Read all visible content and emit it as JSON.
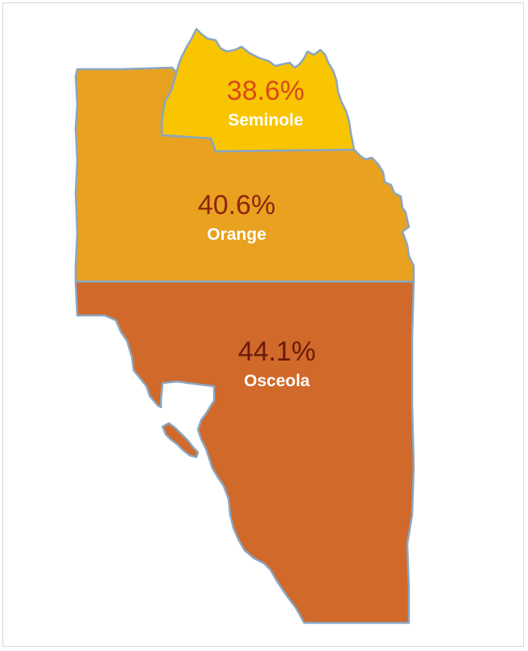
{
  "map": {
    "counties": [
      {
        "id": "seminole",
        "name": "Seminole",
        "percent": "38.6%",
        "value": 38.6,
        "fill": "#f8c500",
        "label_color": "#d94a1a"
      },
      {
        "id": "orange",
        "name": "Orange",
        "percent": "40.6%",
        "value": 40.6,
        "fill": "#e8a220",
        "label_color": "#8e2410"
      },
      {
        "id": "osceola",
        "name": "Osceola",
        "percent": "44.1%",
        "value": 44.1,
        "fill": "#d0692a",
        "label_color": "#6a1a0c"
      }
    ],
    "border_color": "#8aa6c1"
  }
}
